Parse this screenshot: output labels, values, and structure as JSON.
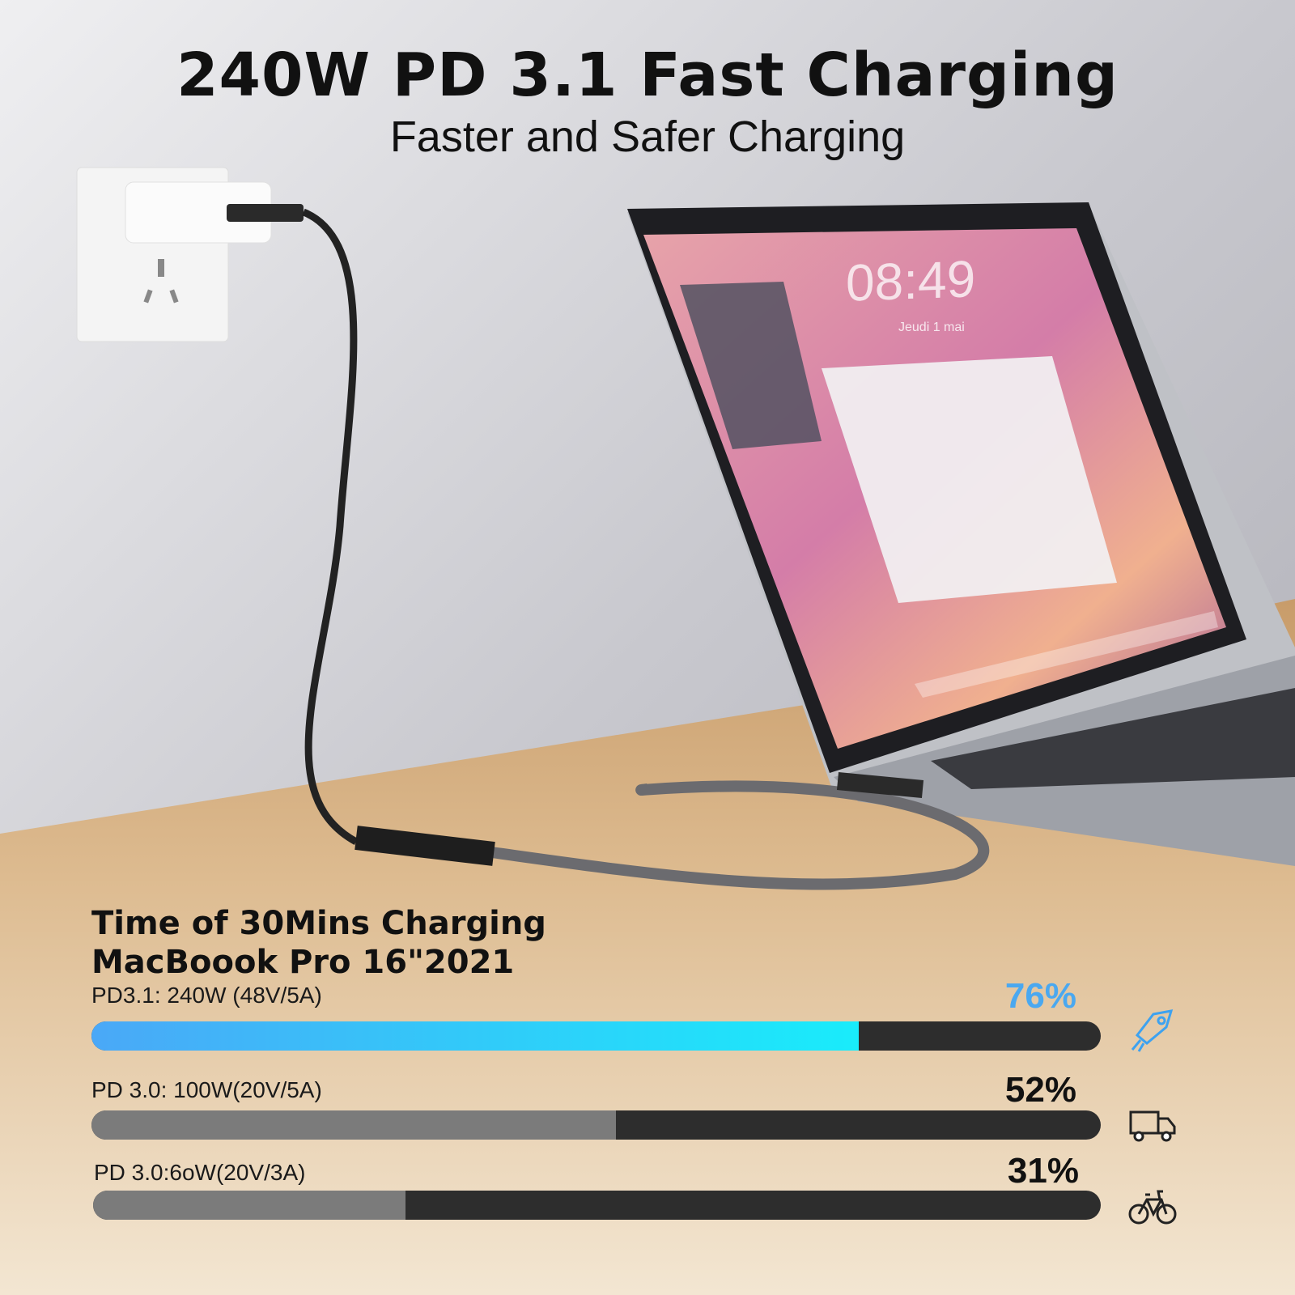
{
  "header": {
    "title": "240W PD 3.1 Fast Charging",
    "subtitle": "Faster and Safer Charging"
  },
  "laptop_screen": {
    "clock": "08:49",
    "date": "Jeudi 1 mai"
  },
  "comparison": {
    "title_line1": "Time of 30Mins Charging",
    "title_line2": "MacBoook Pro 16\"2021",
    "rows": [
      {
        "label": "PD3.1: 240W (48V/5A)",
        "percent_label": "76%",
        "percent": 76,
        "icon": "rocket-icon",
        "highlight": true
      },
      {
        "label": "PD 3.0: 100W(20V/5A)",
        "percent_label": "52%",
        "percent": 52,
        "icon": "truck-icon",
        "highlight": false
      },
      {
        "label": "PD 3.0:6oW(20V/3A)",
        "percent_label": "31%",
        "percent": 31,
        "icon": "bicycle-icon",
        "highlight": false
      }
    ]
  },
  "colors": {
    "highlight_start": "#4aa8f7",
    "highlight_end": "#19ecfb",
    "highlight_text": "#4aa8f0",
    "muted_fill": "#7b7b7b",
    "track": "#2d2d2d"
  }
}
